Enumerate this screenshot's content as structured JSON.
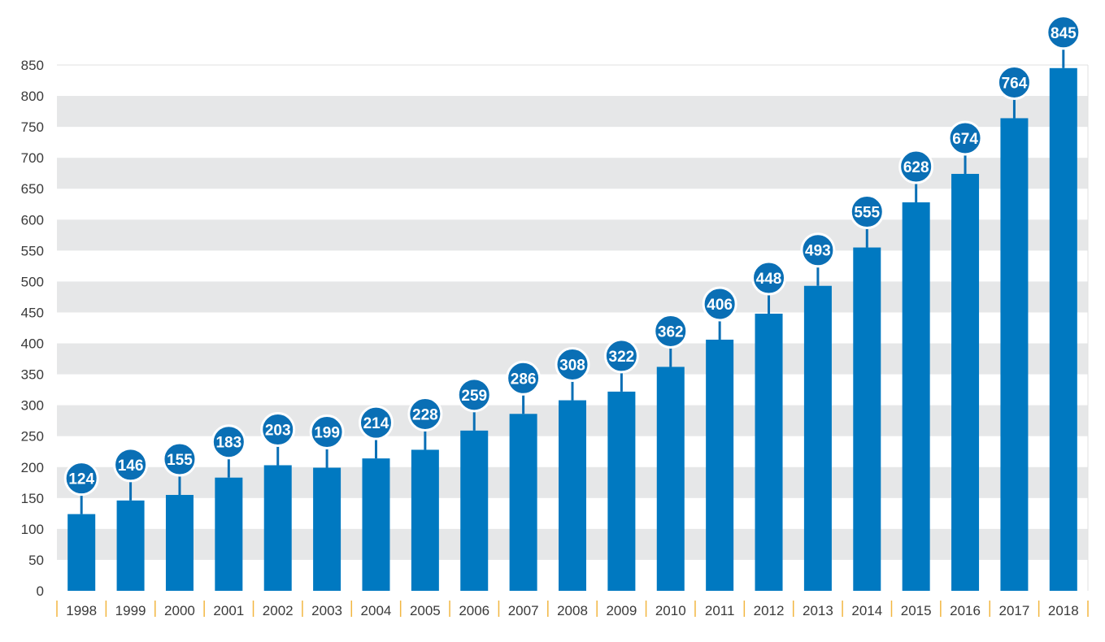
{
  "chart_data": {
    "type": "bar",
    "title": "",
    "xlabel": "",
    "ylabel": "",
    "ylim": [
      0,
      850
    ],
    "ytick_step": 50,
    "grid": "alternating horizontal bands",
    "categories": [
      "1998",
      "1999",
      "2000",
      "2001",
      "2002",
      "2003",
      "2004",
      "2005",
      "2006",
      "2007",
      "2008",
      "2009",
      "2010",
      "2011",
      "2012",
      "2013",
      "2014",
      "2015",
      "2016",
      "2017",
      "2018"
    ],
    "values": [
      124,
      146,
      155,
      183,
      203,
      199,
      214,
      228,
      259,
      286,
      308,
      322,
      362,
      406,
      448,
      493,
      555,
      628,
      674,
      764,
      845
    ],
    "data_labels": [
      "124",
      "146",
      "155",
      "183",
      "203",
      "199",
      "214",
      "228",
      "259",
      "286",
      "308",
      "322",
      "362",
      "406",
      "448",
      "493",
      "555",
      "628",
      "674",
      "764",
      "845"
    ],
    "yticks": [
      "0",
      "50",
      "100",
      "150",
      "200",
      "250",
      "300",
      "350",
      "400",
      "450",
      "500",
      "550",
      "600",
      "650",
      "700",
      "750",
      "800",
      "850"
    ]
  },
  "colors": {
    "bar": "#0079c1",
    "label_bubble": "#0a6fb5",
    "band": "#e6e7e8",
    "separator": "#f2b640",
    "text": "#3a3a3a"
  }
}
